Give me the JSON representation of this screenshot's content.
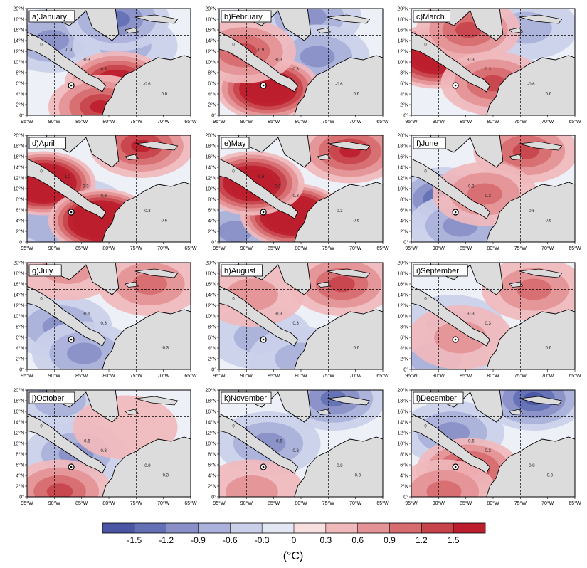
{
  "panels": [
    {
      "id": "a",
      "title": "a)January",
      "contour_labels": [
        "0",
        "0.3",
        "0.6",
        "-0.3",
        "-0.6",
        "-0.9"
      ],
      "warm": [
        [
          0.55,
          0.7,
          2.2
        ],
        [
          0.45,
          0.92,
          1.6
        ]
      ],
      "cool": [
        [
          0.15,
          0.3,
          -0.9
        ],
        [
          0.6,
          0.35,
          -0.6
        ],
        [
          0.55,
          0.1,
          -1.2
        ]
      ]
    },
    {
      "id": "b",
      "title": "b)February",
      "contour_labels": [
        "0",
        "0.3",
        "0.6",
        "-0.3",
        "-0.6",
        "-0.9"
      ],
      "warm": [
        [
          0.3,
          0.75,
          2.6
        ],
        [
          0.15,
          0.4,
          1.2
        ]
      ],
      "cool": [
        [
          0.55,
          0.08,
          -1.0
        ],
        [
          0.6,
          0.45,
          -0.8
        ]
      ]
    },
    {
      "id": "c",
      "title": "c)March",
      "contour_labels": [
        "0",
        "0.3",
        "0.6",
        "-0.3",
        "-0.6"
      ],
      "warm": [
        [
          0.15,
          0.45,
          2.6
        ],
        [
          0.35,
          0.2,
          1.2
        ],
        [
          0.5,
          0.7,
          1.3
        ]
      ],
      "cool": [
        [
          0.6,
          0.75,
          -0.8
        ],
        [
          0.7,
          0.18,
          -0.5
        ]
      ]
    },
    {
      "id": "d",
      "title": "d)April",
      "contour_labels": [
        "0",
        "0.3",
        "0.6",
        "0.9",
        "-0.3",
        "1.2"
      ],
      "warm": [
        [
          0.1,
          0.45,
          3.2
        ],
        [
          0.45,
          0.8,
          3.4
        ],
        [
          0.7,
          0.1,
          1.4
        ]
      ],
      "cool": [
        [
          0.3,
          0.7,
          -0.6
        ],
        [
          0.12,
          0.85,
          -0.5
        ]
      ]
    },
    {
      "id": "e",
      "title": "e)May",
      "contour_labels": [
        "0",
        "0.3",
        "0.6",
        "0.9",
        "-0.3",
        "-0.6"
      ],
      "warm": [
        [
          0.45,
          0.75,
          3.2
        ],
        [
          0.2,
          0.45,
          2.6
        ],
        [
          0.8,
          0.15,
          1.5
        ]
      ],
      "cool": [
        [
          0.35,
          0.75,
          -1.2
        ],
        [
          0.1,
          0.9,
          -0.9
        ]
      ]
    },
    {
      "id": "f",
      "title": "f)June",
      "contour_labels": [
        "0",
        "0.3",
        "0.6",
        "-0.3",
        "-0.6"
      ],
      "warm": [
        [
          0.7,
          0.15,
          1.2
        ],
        [
          0.45,
          0.55,
          0.8
        ]
      ],
      "cool": [
        [
          0.2,
          0.6,
          -1.4
        ],
        [
          0.3,
          0.85,
          -1.0
        ]
      ]
    },
    {
      "id": "g",
      "title": "g)July",
      "contour_labels": [
        "0",
        "0.3",
        "-0.3",
        "-0.6"
      ],
      "warm": [
        [
          0.75,
          0.2,
          0.8
        ],
        [
          0.25,
          0.05,
          0.7
        ]
      ],
      "cool": [
        [
          0.2,
          0.6,
          -0.9
        ],
        [
          0.35,
          0.85,
          -0.8
        ]
      ]
    },
    {
      "id": "h",
      "title": "h)August",
      "contour_labels": [
        "0",
        "0.3",
        "0.6",
        "-0.3"
      ],
      "warm": [
        [
          0.75,
          0.2,
          1.1
        ],
        [
          0.2,
          0.3,
          0.6
        ]
      ],
      "cool": [
        [
          0.25,
          0.7,
          -0.7
        ],
        [
          0.5,
          0.9,
          -0.5
        ]
      ]
    },
    {
      "id": "i",
      "title": "i)September",
      "contour_labels": [
        "0",
        "0.3",
        "0.6",
        "-0.3"
      ],
      "warm": [
        [
          0.75,
          0.25,
          1.0
        ],
        [
          0.3,
          0.7,
          0.5
        ]
      ],
      "cool": [
        [
          0.25,
          0.6,
          -0.7
        ],
        [
          0.15,
          0.9,
          -0.5
        ]
      ]
    },
    {
      "id": "j",
      "title": "j)October",
      "contour_labels": [
        "0",
        "0.3",
        "-0.3",
        "-0.6",
        "-0.9"
      ],
      "warm": [
        [
          0.2,
          0.95,
          1.1
        ],
        [
          0.6,
          0.35,
          0.4
        ]
      ],
      "cool": [
        [
          0.3,
          0.6,
          -0.8
        ],
        [
          0.2,
          0.1,
          -0.5
        ]
      ]
    },
    {
      "id": "k",
      "title": "k)November",
      "contour_labels": [
        "0",
        "0.3",
        "-0.3",
        "-0.6",
        "-0.9"
      ],
      "warm": [
        [
          0.2,
          0.95,
          0.5
        ]
      ],
      "cool": [
        [
          0.3,
          0.5,
          -0.9
        ],
        [
          0.7,
          0.08,
          -1.2
        ]
      ]
    },
    {
      "id": "l",
      "title": "l)December",
      "contour_labels": [
        "0",
        "0.3",
        "-0.3",
        "-0.6",
        "-0.9"
      ],
      "warm": [
        [
          0.35,
          0.75,
          1.4
        ],
        [
          0.2,
          0.95,
          1.0
        ]
      ],
      "cool": [
        [
          0.75,
          0.08,
          -1.6
        ],
        [
          0.25,
          0.4,
          -0.8
        ]
      ]
    }
  ],
  "x_ticks": [
    "95°W",
    "90°W",
    "85°W",
    "80°W",
    "75°W",
    "70°W",
    "65°W"
  ],
  "y_ticks": [
    "0°",
    "2°N",
    "4°N",
    "6°N",
    "8°N",
    "10°N",
    "12°N",
    "14°N",
    "16°N",
    "18°N",
    "20°N"
  ],
  "colorbar": {
    "colors": [
      "#4a55a3",
      "#6470b5",
      "#8890c7",
      "#aab1da",
      "#cbd0ea",
      "#e3e6f3",
      "#f7dfe0",
      "#f0b9bc",
      "#e49396",
      "#d66b70",
      "#c8444c",
      "#bd1e2e"
    ],
    "tick_labels": [
      "-1.5",
      "-1.2",
      "-0.9",
      "-0.6",
      "-0.3",
      "0",
      "0.3",
      "0.6",
      "0.9",
      "1.2",
      "1.5"
    ],
    "unit": "(°C)"
  },
  "land_color": "#dcdcdc"
}
